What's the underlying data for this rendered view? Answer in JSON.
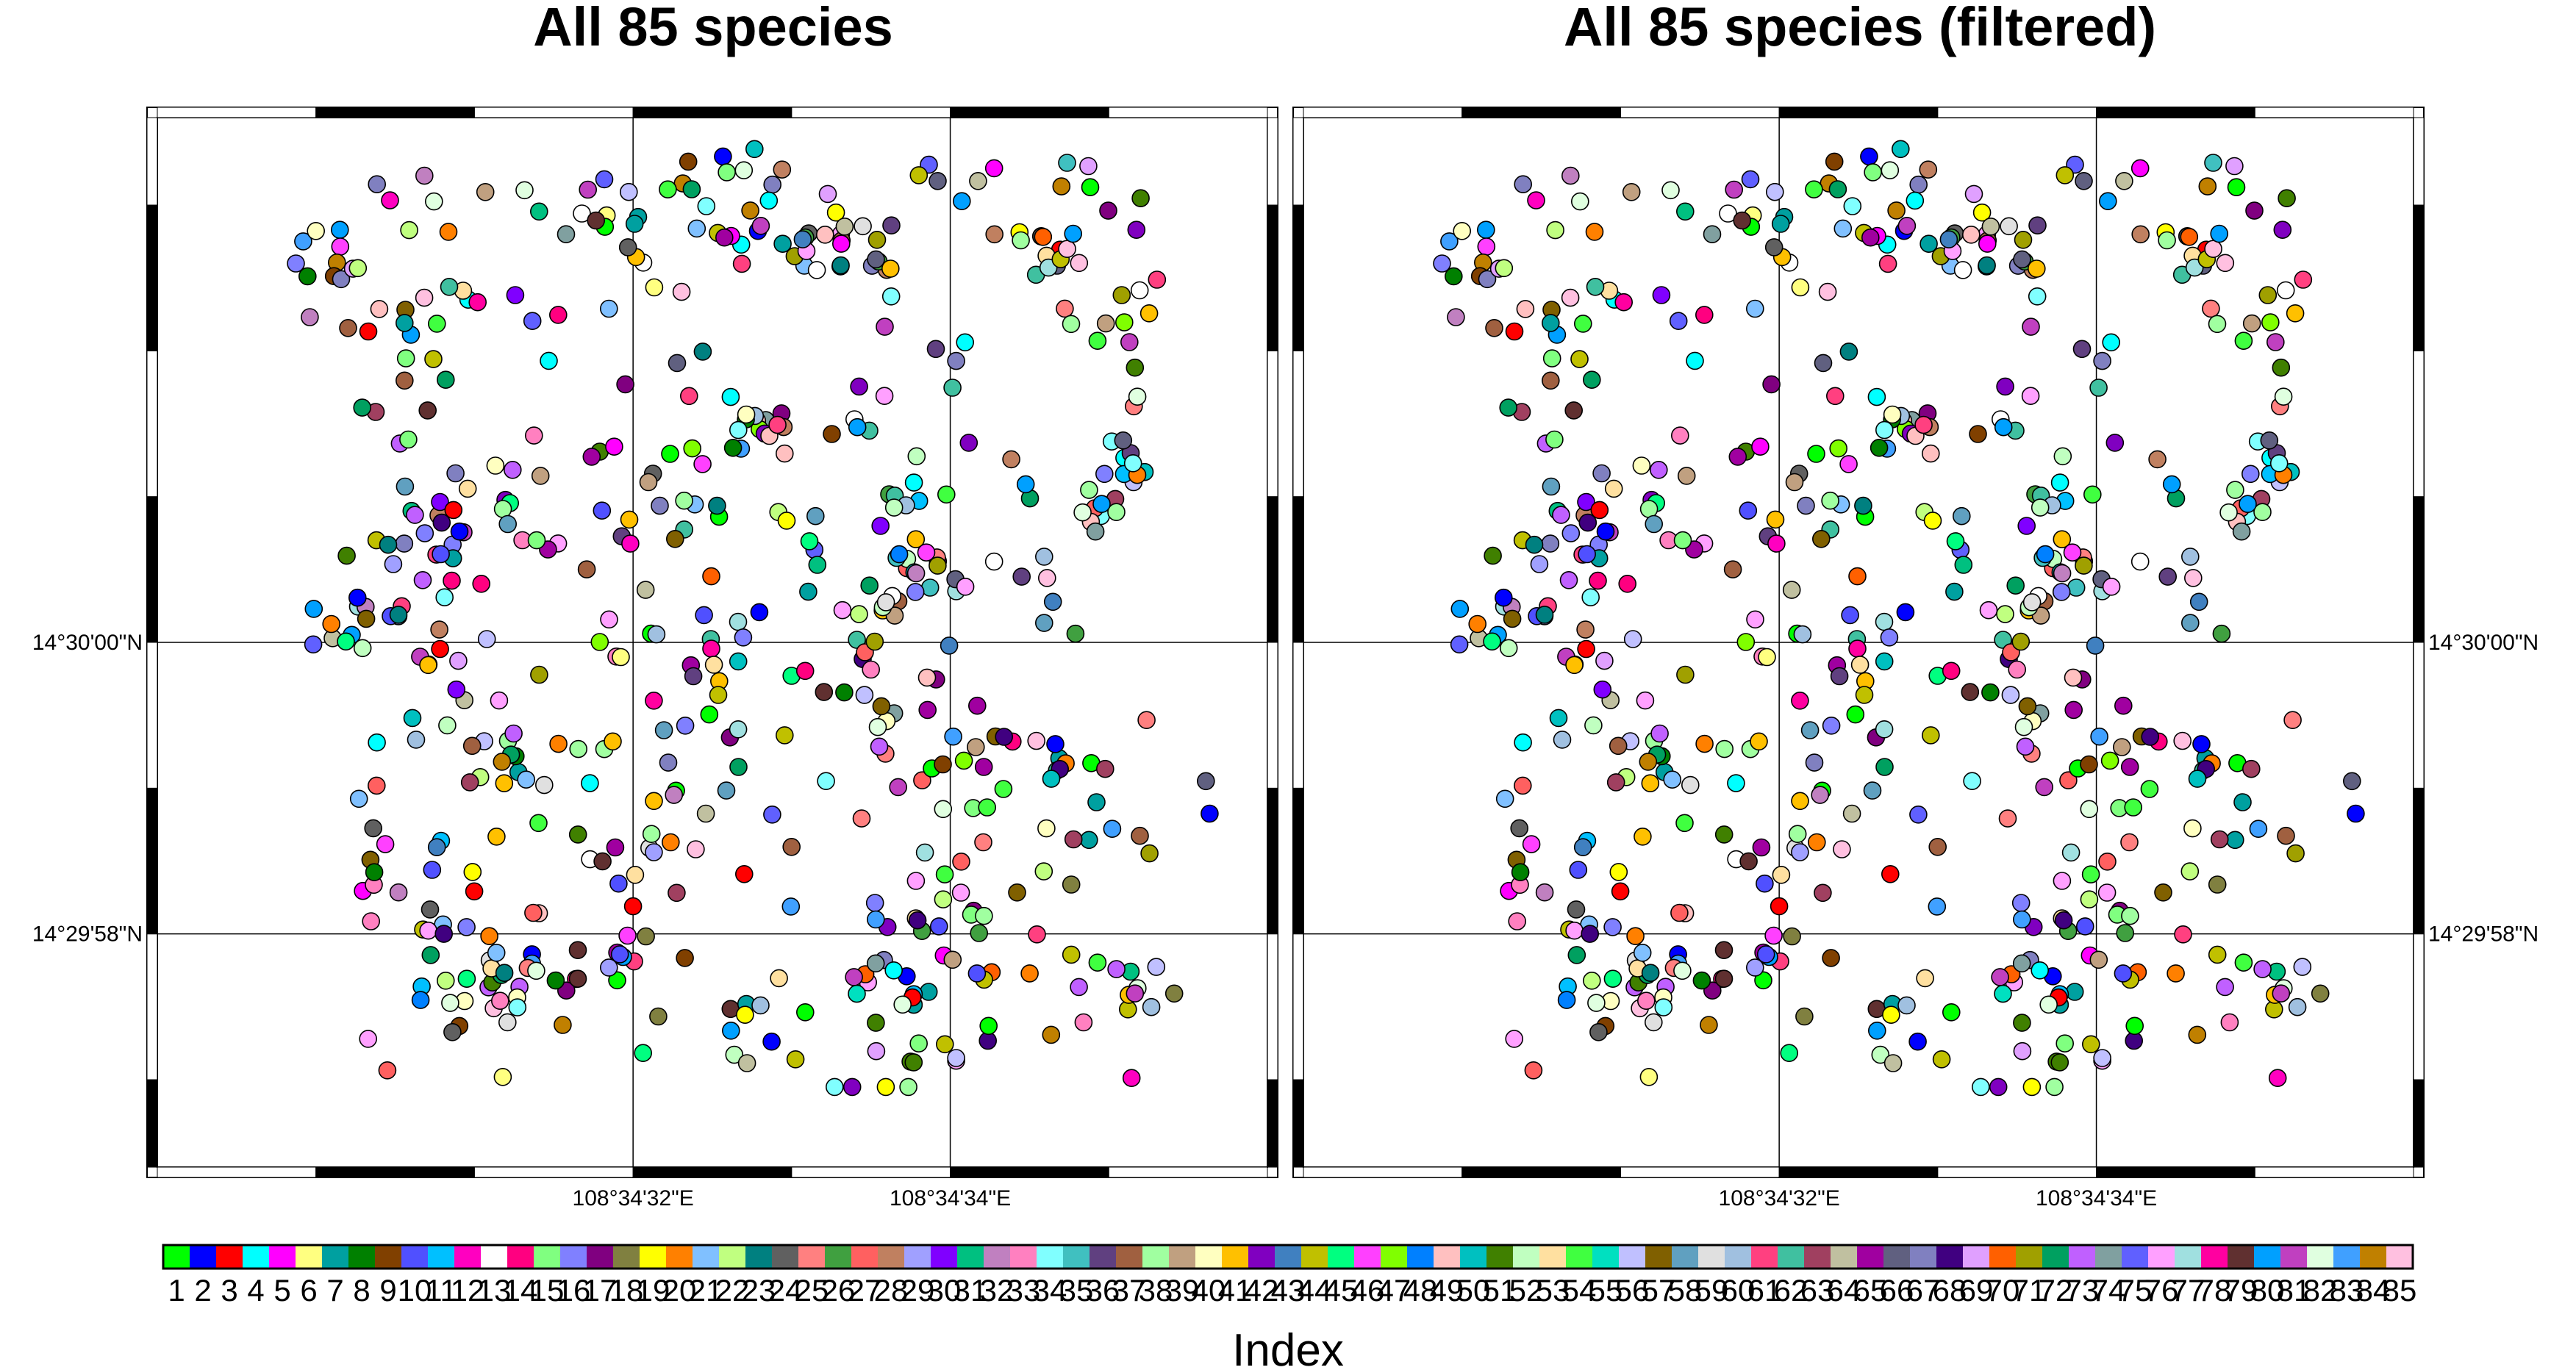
{
  "figure": {
    "panels": [
      {
        "title": "All 85 species"
      },
      {
        "title": "All 85 species (filtered)"
      }
    ],
    "colorbar_label": "Index"
  },
  "chart_data": {
    "type": "scatter",
    "map_projection": "geographic",
    "lon_range_arcsec": [
      29.0,
      36.0
    ],
    "lat_range_arcsec": [
      -3.6,
      3.6
    ],
    "lon_ticks": [
      {
        "arcsec": 32,
        "label": "108°34'32\"E"
      },
      {
        "arcsec": 34,
        "label": "108°34'34\"E"
      }
    ],
    "lat_ticks": [
      {
        "arcsec": 0,
        "label": "14°30'00\"N"
      },
      {
        "arcsec": -2,
        "label": "14°29'58\"N"
      }
    ],
    "grid": true,
    "marker": "circle",
    "n_species": 85,
    "n_points_per_panel": 620,
    "species_index_range": [
      1,
      85
    ],
    "colormap": "categorical-85"
  }
}
